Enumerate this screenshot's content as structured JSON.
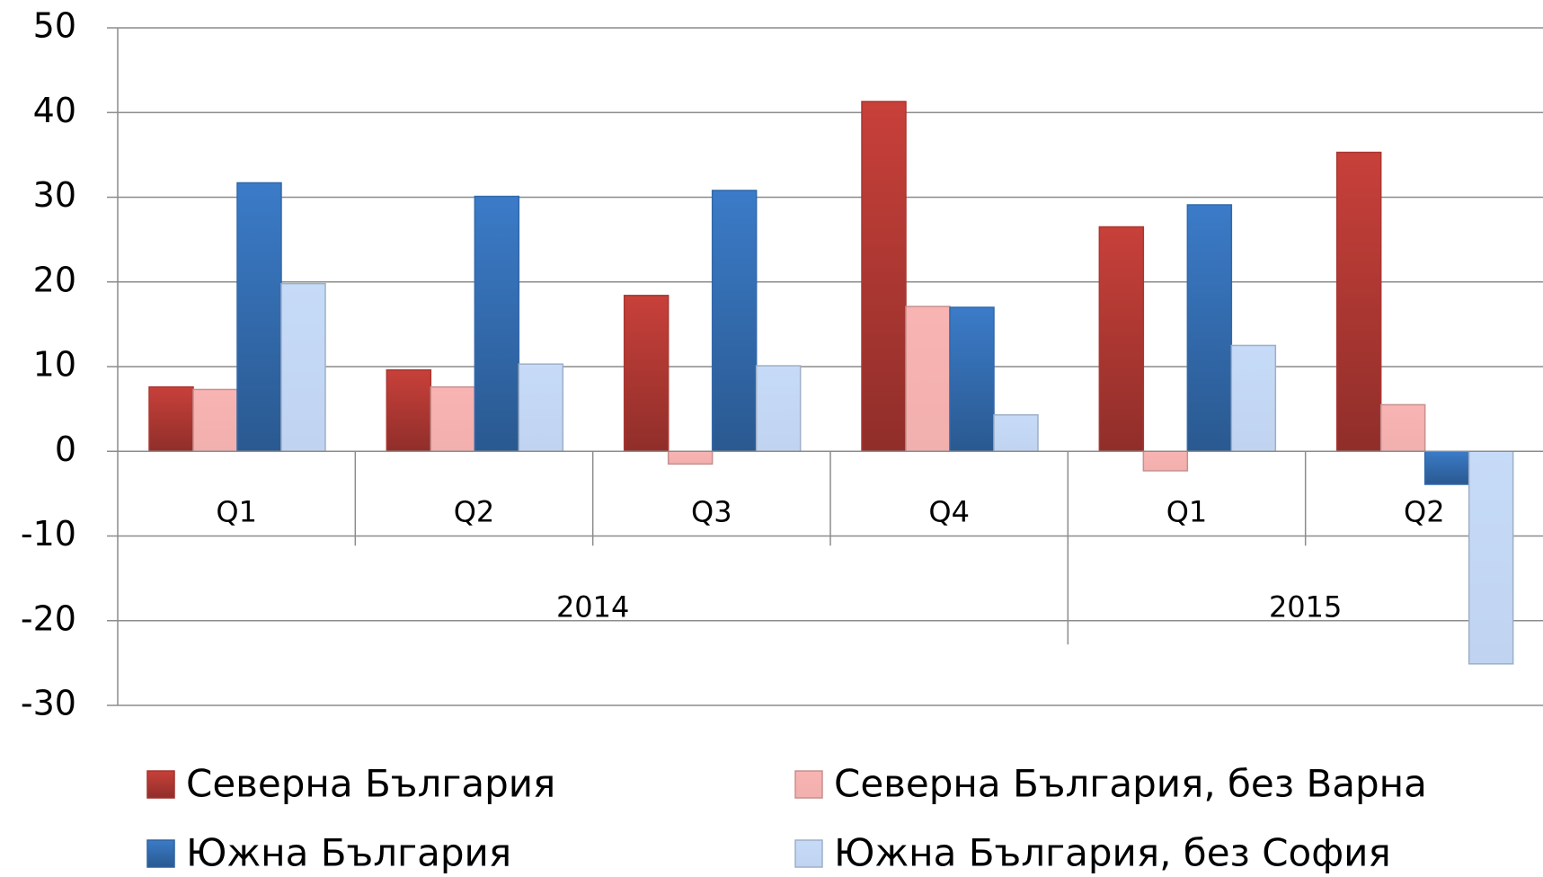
{
  "chart_data": {
    "type": "bar",
    "categories": [
      "Q1",
      "Q2",
      "Q3",
      "Q4",
      "Q1",
      "Q2"
    ],
    "groups": [
      {
        "label": "2014",
        "span": 4
      },
      {
        "label": "2015",
        "span": 2
      }
    ],
    "series": [
      {
        "name": "Северна България",
        "color": "#c8403a",
        "values": [
          7.6,
          9.6,
          18.4,
          41.3,
          26.5,
          35.3
        ]
      },
      {
        "name": "Северна България, без Варна",
        "color": "#f8b4b2",
        "values": [
          7.3,
          7.6,
          -1.5,
          17.1,
          -2.3,
          5.5
        ]
      },
      {
        "name": "Южна България",
        "color": "#3b7bc8",
        "values": [
          31.7,
          30.1,
          30.8,
          17.0,
          29.1,
          -3.9
        ]
      },
      {
        "name": "Южна България, без София",
        "color": "#c6dbf8",
        "values": [
          19.8,
          10.3,
          10.1,
          4.3,
          12.5,
          -25.1
        ]
      }
    ],
    "ylim": [
      -30,
      50
    ],
    "yticks": [
      -30,
      -20,
      -10,
      0,
      10,
      20,
      30,
      40,
      50
    ],
    "grid": true,
    "legend": "bottom"
  }
}
